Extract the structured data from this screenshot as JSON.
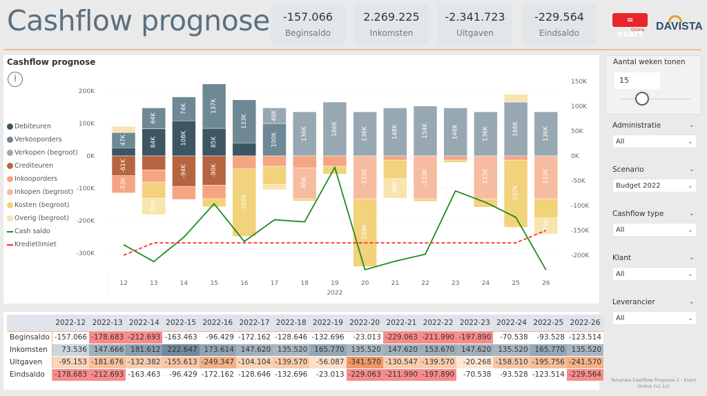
{
  "header": {
    "title": "Cashflow prognose",
    "kpis": [
      {
        "value": "-157.066",
        "label": "Beginsaldo"
      },
      {
        "value": "2.269.225",
        "label": "Inkomsten"
      },
      {
        "value": "-2.341.723",
        "label": "Uitgaven"
      },
      {
        "value": "-229.564",
        "label": "Eindsaldo"
      }
    ],
    "logos": {
      "exact": "= exact",
      "exact_sub": "Online",
      "davista": "DAVISTA"
    }
  },
  "chart_data": {
    "type": "bar",
    "stacked": true,
    "title": "Cashflow prognose",
    "xlabel": "2022",
    "categories": [
      "12",
      "13",
      "14",
      "15",
      "16",
      "17",
      "18",
      "19",
      "20",
      "21",
      "22",
      "23",
      "24",
      "25",
      "26"
    ],
    "y_left": {
      "ticks": [
        "200K",
        "100K",
        "0K",
        "-100K",
        "-200K",
        "-300K"
      ],
      "range_k": [
        -350,
        230
      ]
    },
    "y_right": {
      "ticks": [
        "150K",
        "100K",
        "50K",
        "0K",
        "-50K",
        "-100K",
        "-150K",
        "-200K"
      ],
      "range_k": [
        -240,
        160
      ]
    },
    "grid": true,
    "legend": "left",
    "series_colors": {
      "Debiteuren": "#3e5563",
      "Verkooporders": "#6f8896",
      "Verkopen (begroot)": "#98a8b2",
      "Crediteuren": "#b5653f",
      "Inkooporders": "#f4a582",
      "Inkopen (begroot)": "#f7bba0",
      "Kosten (begroot)": "#f2d27a",
      "Overig (begroot)": "#f7e4ae",
      "Cash saldo": "#1e8a1e",
      "Kredietlimiet": "#ff2a2a"
    },
    "legend_items": [
      "Debiteuren",
      "Verkooporders",
      "Verkopen (begroot)",
      "Crediteuren",
      "Inkooporders",
      "Inkopen (begroot)",
      "Kosten (begroot)",
      "Overig (begroot)",
      "Cash saldo",
      "Kredietlimiet"
    ],
    "bars": [
      {
        "pos": [
          [
            "Debiteuren",
            25
          ],
          [
            "Verkooporders",
            47,
            "47K"
          ],
          [
            "Overig (begroot)",
            19
          ]
        ],
        "neg": [
          [
            "Crediteuren",
            -61,
            "-61K"
          ],
          [
            "Inkooporders",
            -53,
            "-53K"
          ]
        ]
      },
      {
        "pos": [
          [
            "Debiteuren",
            84,
            "84K"
          ],
          [
            "Verkooporders",
            64,
            "64K"
          ]
        ],
        "neg": [
          [
            "Crediteuren",
            -43
          ],
          [
            "Inkooporders",
            -38
          ],
          [
            "Kosten (begroot)",
            -50
          ],
          [
            "Overig (begroot)",
            -50,
            "-50K"
          ]
        ]
      },
      {
        "pos": [
          [
            "Debiteuren",
            108,
            "108K"
          ],
          [
            "Verkooporders",
            74,
            "74K"
          ],
          [
            "Overig (begroot)",
            2
          ]
        ],
        "neg": [
          [
            "Crediteuren",
            -94,
            "-94K"
          ],
          [
            "Inkooporders",
            -40
          ]
        ]
      },
      {
        "pos": [
          [
            "Debiteuren",
            85,
            "85K"
          ],
          [
            "Verkooporders",
            137,
            "137K"
          ]
        ],
        "neg": [
          [
            "Crediteuren",
            -90,
            "-90K"
          ],
          [
            "Inkooporders",
            -42
          ],
          [
            "Kosten (begroot)",
            -25
          ]
        ]
      },
      {
        "pos": [
          [
            "Debiteuren",
            40
          ],
          [
            "Verkooporders",
            133,
            "133K"
          ]
        ],
        "neg": [
          [
            "Inkooporders",
            -40
          ],
          [
            "Kosten (begroot)",
            -208,
            "-208K"
          ]
        ]
      },
      {
        "pos": [
          [
            "Verkooporders",
            100,
            "100K"
          ],
          [
            "Verkopen (begroot)",
            48,
            "48K"
          ]
        ],
        "neg": [
          [
            "Inkooporders",
            -32
          ],
          [
            "Kosten (begroot)",
            -56
          ],
          [
            "Overig (begroot)",
            -16
          ]
        ]
      },
      {
        "pos": [
          [
            "Verkopen (begroot)",
            136,
            "136K"
          ]
        ],
        "neg": [
          [
            "Inkooporders",
            -37
          ],
          [
            "Inkopen (begroot)",
            -95,
            "-95K"
          ],
          [
            "Kosten (begroot)",
            -7
          ]
        ]
      },
      {
        "pos": [
          [
            "Verkopen (begroot)",
            166,
            "166K"
          ]
        ],
        "neg": [
          [
            "Inkooporders",
            -32
          ],
          [
            "Kosten (begroot)",
            -24
          ]
        ]
      },
      {
        "pos": [
          [
            "Verkopen (begroot)",
            136,
            "136K"
          ]
        ],
        "neg": [
          [
            "Inkopen (begroot)",
            -133,
            "-133K"
          ],
          [
            "Kosten (begroot)",
            -208,
            "-208K"
          ]
        ]
      },
      {
        "pos": [
          [
            "Verkopen (begroot)",
            148,
            "148K"
          ]
        ],
        "neg": [
          [
            "Inkooporders",
            -13
          ],
          [
            "Kosten (begroot)",
            -57
          ],
          [
            "Overig (begroot)",
            -60,
            "-60K"
          ]
        ]
      },
      {
        "pos": [
          [
            "Verkopen (begroot)",
            154,
            "154K"
          ]
        ],
        "neg": [
          [
            "Inkopen (begroot)",
            -133,
            "-133K"
          ],
          [
            "Kosten (begroot)",
            -7
          ]
        ]
      },
      {
        "pos": [
          [
            "Verkopen (begroot)",
            148,
            "148K"
          ]
        ],
        "neg": [
          [
            "Inkooporders",
            -13
          ],
          [
            "Kosten (begroot)",
            -7
          ]
        ]
      },
      {
        "pos": [
          [
            "Verkopen (begroot)",
            136,
            "136K"
          ]
        ],
        "neg": [
          [
            "Inkopen (begroot)",
            -133,
            "-133K"
          ],
          [
            "Kosten (begroot)",
            -25
          ]
        ]
      },
      {
        "pos": [
          [
            "Verkopen (begroot)",
            166,
            "166K"
          ],
          [
            "Overig (begroot)",
            24
          ]
        ],
        "neg": [
          [
            "Inkooporders",
            -13
          ],
          [
            "Kosten (begroot)",
            -207,
            "-207K"
          ]
        ]
      },
      {
        "pos": [
          [
            "Verkopen (begroot)",
            136,
            "136K"
          ]
        ],
        "neg": [
          [
            "Inkopen (begroot)",
            -133,
            "-133K"
          ],
          [
            "Kosten (begroot)",
            -58
          ],
          [
            "Overig (begroot)",
            -50,
            "-50K"
          ]
        ]
      }
    ],
    "lines": [
      {
        "name": "Cash saldo",
        "axis": "right",
        "values_k": [
          -178.7,
          -212.7,
          -163.5,
          -96.4,
          -172.2,
          -128.6,
          -132.7,
          -23.0,
          -229.1,
          -212.0,
          -197.9,
          -70.5,
          -93.5,
          -123.5,
          -229.6
        ]
      },
      {
        "name": "Kredietlimiet",
        "axis": "right",
        "dashed": true,
        "values_k": [
          -200,
          -175,
          -175,
          -175,
          -175,
          -175,
          -175,
          -175,
          -175,
          -175,
          -175,
          -175,
          -175,
          -175,
          -150
        ]
      }
    ]
  },
  "table": {
    "columns": [
      "2022-12",
      "2022-13",
      "2022-14",
      "2022-15",
      "2022-16",
      "2022-17",
      "2022-18",
      "2022-19",
      "2022-20",
      "2022-21",
      "2022-22",
      "2022-23",
      "2022-24",
      "2022-25",
      "2022-26"
    ],
    "rows": [
      {
        "label": "Beginsaldo",
        "values": [
          "-157.066",
          "-178.683",
          "-212.693",
          "-163.463",
          "-96.429",
          "-172.162",
          "-128.646",
          "-132.696",
          "-23.013",
          "-229.063",
          "-211.990",
          "-197.890",
          "-70.538",
          "-93.528",
          "-123.514"
        ]
      },
      {
        "label": "Inkomsten",
        "values": [
          "73.536",
          "147.666",
          "181.612",
          "222.647",
          "173.614",
          "147.620",
          "135.520",
          "165.770",
          "135.520",
          "147.620",
          "153.670",
          "147.620",
          "135.520",
          "165.770",
          "135.520"
        ]
      },
      {
        "label": "Uitgaven",
        "values": [
          "-95.153",
          "-181.676",
          "-132.382",
          "-155.613",
          "-249.347",
          "-104.104",
          "-139.570",
          "-56.087",
          "-341.570",
          "-130.547",
          "-139.570",
          "-20.268",
          "-158.510",
          "-195.756",
          "-241.570"
        ]
      },
      {
        "label": "Eindsaldo",
        "values": [
          "-178.683",
          "-212.693",
          "-163.463",
          "-96.429",
          "-172.162",
          "-128.646",
          "-132.696",
          "-23.013",
          "-229.063",
          "-211.990",
          "-197.890",
          "-70.538",
          "-93.528",
          "-123.514",
          "-229.564"
        ]
      }
    ]
  },
  "filters": {
    "weeks": {
      "title": "Aantal weken tonen",
      "value": "15"
    },
    "slicers": [
      {
        "title": "Administratie",
        "value": "All"
      },
      {
        "title": "Scenario",
        "value": "Budget 2022"
      },
      {
        "title": "Cashflow type",
        "value": "All"
      },
      {
        "title": "Klant",
        "value": "All"
      },
      {
        "title": "Leverancier",
        "value": "All"
      }
    ]
  },
  "footer": "Template Cashflow Prognose 2 - Exact Online (v1.12)"
}
